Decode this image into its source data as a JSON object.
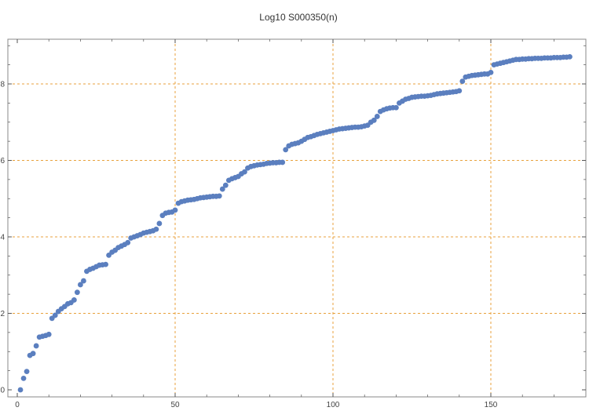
{
  "chart_data": {
    "type": "scatter",
    "title": "Log10 S000350(n)",
    "xlabel": "",
    "ylabel": "",
    "xlim": [
      0,
      180
    ],
    "ylim": [
      -0.1,
      9.1
    ],
    "xticks": [
      0,
      50,
      100,
      150
    ],
    "yticks": [
      0,
      2,
      4,
      6,
      8
    ],
    "grid_x": [
      50,
      100,
      150
    ],
    "grid_y": [
      2,
      4,
      6,
      8
    ],
    "grid": true,
    "legend": "none",
    "colors": {
      "points": "#5b7fbf",
      "grid": "#e8a23c",
      "axis": "#555555"
    },
    "series": [
      {
        "x": [
          1,
          2,
          3,
          4,
          5,
          6,
          7,
          8,
          9,
          10,
          11,
          12,
          13,
          14,
          15,
          16,
          17,
          18,
          19,
          20,
          21,
          22,
          23,
          24,
          25,
          26,
          27,
          28,
          29,
          30,
          31,
          32,
          33,
          34,
          35,
          36,
          37,
          38,
          39,
          40,
          41,
          42,
          43,
          44,
          45,
          46,
          47,
          48,
          49,
          50,
          51,
          52,
          53,
          54,
          55,
          56,
          57,
          58,
          59,
          60,
          61,
          62,
          63,
          64,
          65,
          66,
          67,
          68,
          69,
          70,
          71,
          72,
          73,
          74,
          75,
          76,
          77,
          78,
          79,
          80,
          81,
          82,
          83,
          84,
          85,
          86,
          87,
          88,
          89,
          90,
          91,
          92,
          93,
          94,
          95,
          96,
          97,
          98,
          99,
          100,
          101,
          102,
          103,
          104,
          105,
          106,
          107,
          108,
          109,
          110,
          111,
          112,
          113,
          114,
          115,
          116,
          117,
          118,
          119,
          120,
          121,
          122,
          123,
          124,
          125,
          126,
          127,
          128,
          129,
          130,
          131,
          132,
          133,
          134,
          135,
          136,
          137,
          138,
          139,
          140,
          141,
          142,
          143,
          144,
          145,
          146,
          147,
          148,
          149,
          150,
          151,
          152,
          153,
          154,
          155,
          156,
          157,
          158,
          159,
          160,
          161,
          162,
          163,
          164,
          165,
          166,
          167,
          168,
          169,
          170,
          171,
          172,
          173,
          174,
          175
        ],
        "y": [
          0,
          0.3,
          0.48,
          0.9,
          0.95,
          1.15,
          1.38,
          1.4,
          1.42,
          1.45,
          1.87,
          1.95,
          2.05,
          2.12,
          2.18,
          2.25,
          2.28,
          2.35,
          2.55,
          2.75,
          2.85,
          3.1,
          3.15,
          3.18,
          3.22,
          3.26,
          3.27,
          3.28,
          3.52,
          3.6,
          3.65,
          3.72,
          3.76,
          3.8,
          3.85,
          3.97,
          4.0,
          4.03,
          4.06,
          4.1,
          4.12,
          4.14,
          4.16,
          4.2,
          4.35,
          4.56,
          4.62,
          4.64,
          4.65,
          4.7,
          4.88,
          4.92,
          4.94,
          4.96,
          4.97,
          4.98,
          5.0,
          5.02,
          5.03,
          5.04,
          5.05,
          5.06,
          5.06,
          5.07,
          5.25,
          5.35,
          5.48,
          5.52,
          5.55,
          5.58,
          5.65,
          5.7,
          5.8,
          5.84,
          5.86,
          5.88,
          5.89,
          5.9,
          5.92,
          5.93,
          5.94,
          5.94,
          5.95,
          5.95,
          6.28,
          6.38,
          6.42,
          6.44,
          6.46,
          6.5,
          6.55,
          6.6,
          6.62,
          6.65,
          6.68,
          6.7,
          6.72,
          6.74,
          6.76,
          6.78,
          6.8,
          6.82,
          6.83,
          6.84,
          6.85,
          6.86,
          6.87,
          6.87,
          6.88,
          6.9,
          6.92,
          7.0,
          7.05,
          7.15,
          7.28,
          7.32,
          7.35,
          7.37,
          7.38,
          7.38,
          7.5,
          7.55,
          7.6,
          7.62,
          7.65,
          7.66,
          7.67,
          7.68,
          7.68,
          7.69,
          7.7,
          7.72,
          7.74,
          7.75,
          7.76,
          7.77,
          7.78,
          7.79,
          7.8,
          7.82,
          8.07,
          8.18,
          8.2,
          8.22,
          8.23,
          8.24,
          8.25,
          8.26,
          8.26,
          8.3,
          8.5,
          8.52,
          8.54,
          8.56,
          8.58,
          8.6,
          8.62,
          8.64,
          8.64,
          8.65,
          8.65,
          8.66,
          8.66,
          8.67,
          8.67,
          8.67,
          8.68,
          8.68,
          8.68,
          8.69,
          8.69,
          8.69,
          8.7,
          8.7,
          8.71
        ]
      }
    ]
  }
}
